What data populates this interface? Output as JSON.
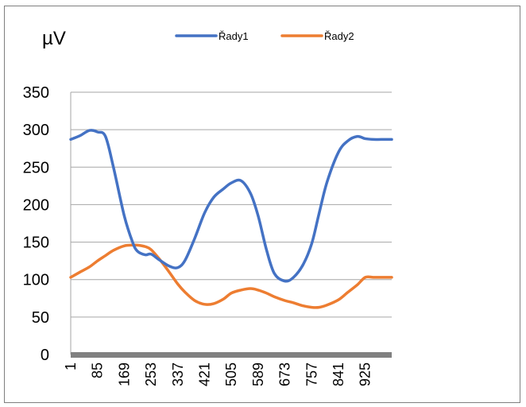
{
  "chart_data": {
    "type": "line",
    "ylabel": "µV",
    "ylim": [
      0,
      350
    ],
    "y_ticks": [
      "0",
      "50",
      "100",
      "150",
      "200",
      "250",
      "300",
      "350"
    ],
    "grid": true,
    "legend_position": "top",
    "x_range": [
      1,
      1008
    ],
    "x_ticks": [
      "1",
      "85",
      "169",
      "253",
      "337",
      "421",
      "505",
      "589",
      "673",
      "757",
      "841",
      "925"
    ],
    "x": [
      1,
      30,
      60,
      85,
      110,
      135,
      169,
      195,
      210,
      235,
      253,
      280,
      310,
      337,
      360,
      390,
      421,
      450,
      480,
      505,
      535,
      565,
      589,
      615,
      640,
      673,
      700,
      730,
      757,
      780,
      805,
      841,
      870,
      900,
      925,
      950,
      975,
      1008
    ],
    "series": [
      {
        "name": "Řady1",
        "color": "#4472C4",
        "values": [
          287,
          292,
          299,
          297,
          291,
          250,
          185,
          150,
          138,
          133,
          134,
          126,
          118,
          116,
          126,
          155,
          189,
          210,
          221,
          229,
          232,
          215,
          185,
          140,
          108,
          98,
          103,
          120,
          148,
          188,
          230,
          270,
          285,
          291,
          288,
          287,
          287,
          287
        ]
      },
      {
        "name": "Řady2",
        "color": "#ED7D31",
        "values": [
          103,
          110,
          117,
          125,
          132,
          139,
          145,
          146,
          146,
          144,
          140,
          127,
          110,
          94,
          83,
          72,
          67,
          68,
          74,
          82,
          86,
          88,
          86,
          82,
          77,
          72,
          69,
          65,
          63,
          63,
          66,
          73,
          83,
          93,
          103,
          103,
          103,
          103
        ]
      }
    ]
  }
}
